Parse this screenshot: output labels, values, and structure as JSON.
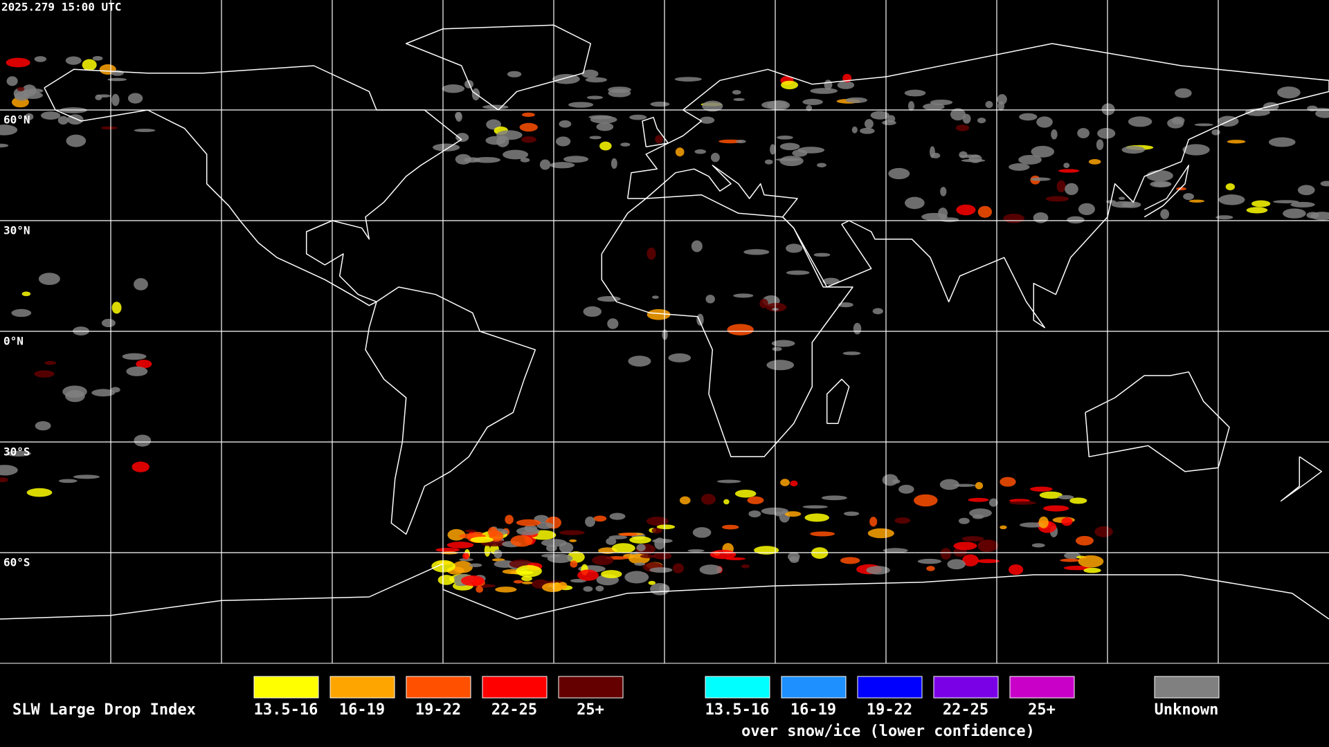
{
  "header": {
    "timestamp": "2025.279 15:00 UTC"
  },
  "map": {
    "lat_labels": [
      "60°N",
      "30°N",
      "0°N",
      "30°S",
      "60°S"
    ]
  },
  "legend": {
    "title": "SLW Large Drop Index",
    "items": [
      {
        "label": "13.5-16",
        "color": "#ffff00"
      },
      {
        "label": "16-19",
        "color": "#ffa500"
      },
      {
        "label": "19-22",
        "color": "#ff5000"
      },
      {
        "label": "22-25",
        "color": "#ff0000"
      },
      {
        "label": "25+",
        "color": "#640000"
      }
    ],
    "snow_items": [
      {
        "label": "13.5-16",
        "color": "#00ffff"
      },
      {
        "label": "16-19",
        "color": "#1e90ff"
      },
      {
        "label": "19-22",
        "color": "#0000ff"
      },
      {
        "label": "22-25",
        "color": "#7a00e6"
      },
      {
        "label": "25+",
        "color": "#c800c8"
      }
    ],
    "snow_caption": "over snow/ice (lower confidence)",
    "unknown": {
      "label": "Unknown",
      "color": "#808080"
    }
  }
}
